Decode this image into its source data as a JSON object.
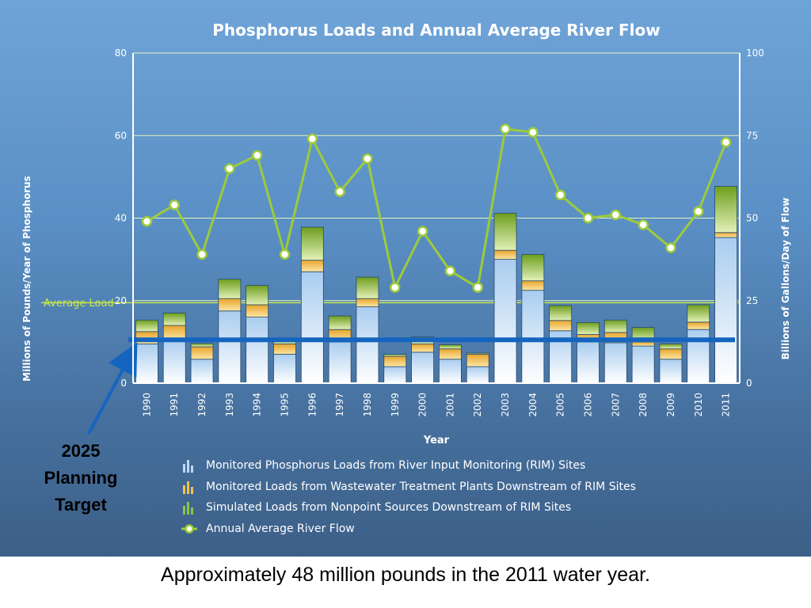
{
  "caption": "Approximately 48 million pounds in the 2011 water year.",
  "annotation": {
    "target_line1": "2025",
    "target_line2": "Planning",
    "target_line3": "Target",
    "target_value": 10.5
  },
  "chart_data": {
    "type": "bar",
    "title": "Phosphorus Loads and Annual Average River Flow",
    "xlabel": "Year",
    "ylabel": "Millions of Pounds/Year of Phosphorus",
    "y2label": "Billions of Gallons/Day of Flow",
    "ylim": [
      0,
      80
    ],
    "y2lim": [
      0,
      100
    ],
    "yticks": [
      0,
      20,
      40,
      60,
      80
    ],
    "y2ticks": [
      0,
      25,
      50,
      75,
      100
    ],
    "grid": true,
    "stacked": true,
    "average_label": "Average Load",
    "average_value": 19.5,
    "categories": [
      "1990",
      "1991",
      "1992",
      "1993",
      "1994",
      "1995",
      "1996",
      "1997",
      "1998",
      "1999",
      "2000",
      "2001",
      "2002",
      "2003",
      "2004",
      "2005",
      "2006",
      "2007",
      "2008",
      "2009",
      "2010",
      "2011"
    ],
    "series": [
      {
        "name": "Monitored Phosphorus Loads from River Input Monitoring (RIM) Sites",
        "color": "#bcd8f2",
        "values": [
          9.5,
          10.5,
          5.8,
          17.5,
          16.0,
          7.0,
          27.0,
          10.0,
          18.5,
          4.0,
          7.5,
          5.8,
          4.0,
          30.0,
          22.5,
          12.7,
          10.0,
          9.8,
          9.0,
          5.8,
          13.0,
          35.3
        ]
      },
      {
        "name": "Monitored Loads from Wastewater Treatment Plants Downstream of RIM Sites",
        "color": "#f2c14e",
        "values": [
          3.0,
          3.5,
          3.0,
          3.0,
          3.0,
          2.5,
          2.8,
          3.0,
          2.0,
          2.5,
          2.0,
          2.5,
          3.0,
          2.2,
          2.3,
          2.5,
          1.8,
          2.5,
          1.0,
          2.5,
          1.8,
          1.2
        ]
      },
      {
        "name": "Simulated Loads from Nonpoint Sources Downstream of RIM Sites",
        "color": "#8cc63f",
        "values": [
          2.8,
          3.0,
          0.8,
          4.7,
          4.7,
          1.3,
          8.0,
          3.3,
          5.2,
          0.5,
          1.7,
          1.0,
          0.3,
          9.0,
          6.4,
          3.6,
          2.9,
          3.0,
          3.5,
          1.2,
          4.2,
          11.2
        ]
      }
    ],
    "line_series": {
      "name": "Annual Average River Flow",
      "axis": "y2",
      "color": "#9ccb3b",
      "values": [
        49,
        54,
        39,
        65,
        69,
        39,
        74,
        58,
        68,
        29,
        46,
        34,
        29,
        77,
        76,
        57,
        50,
        51,
        48,
        41,
        52,
        73
      ]
    }
  }
}
